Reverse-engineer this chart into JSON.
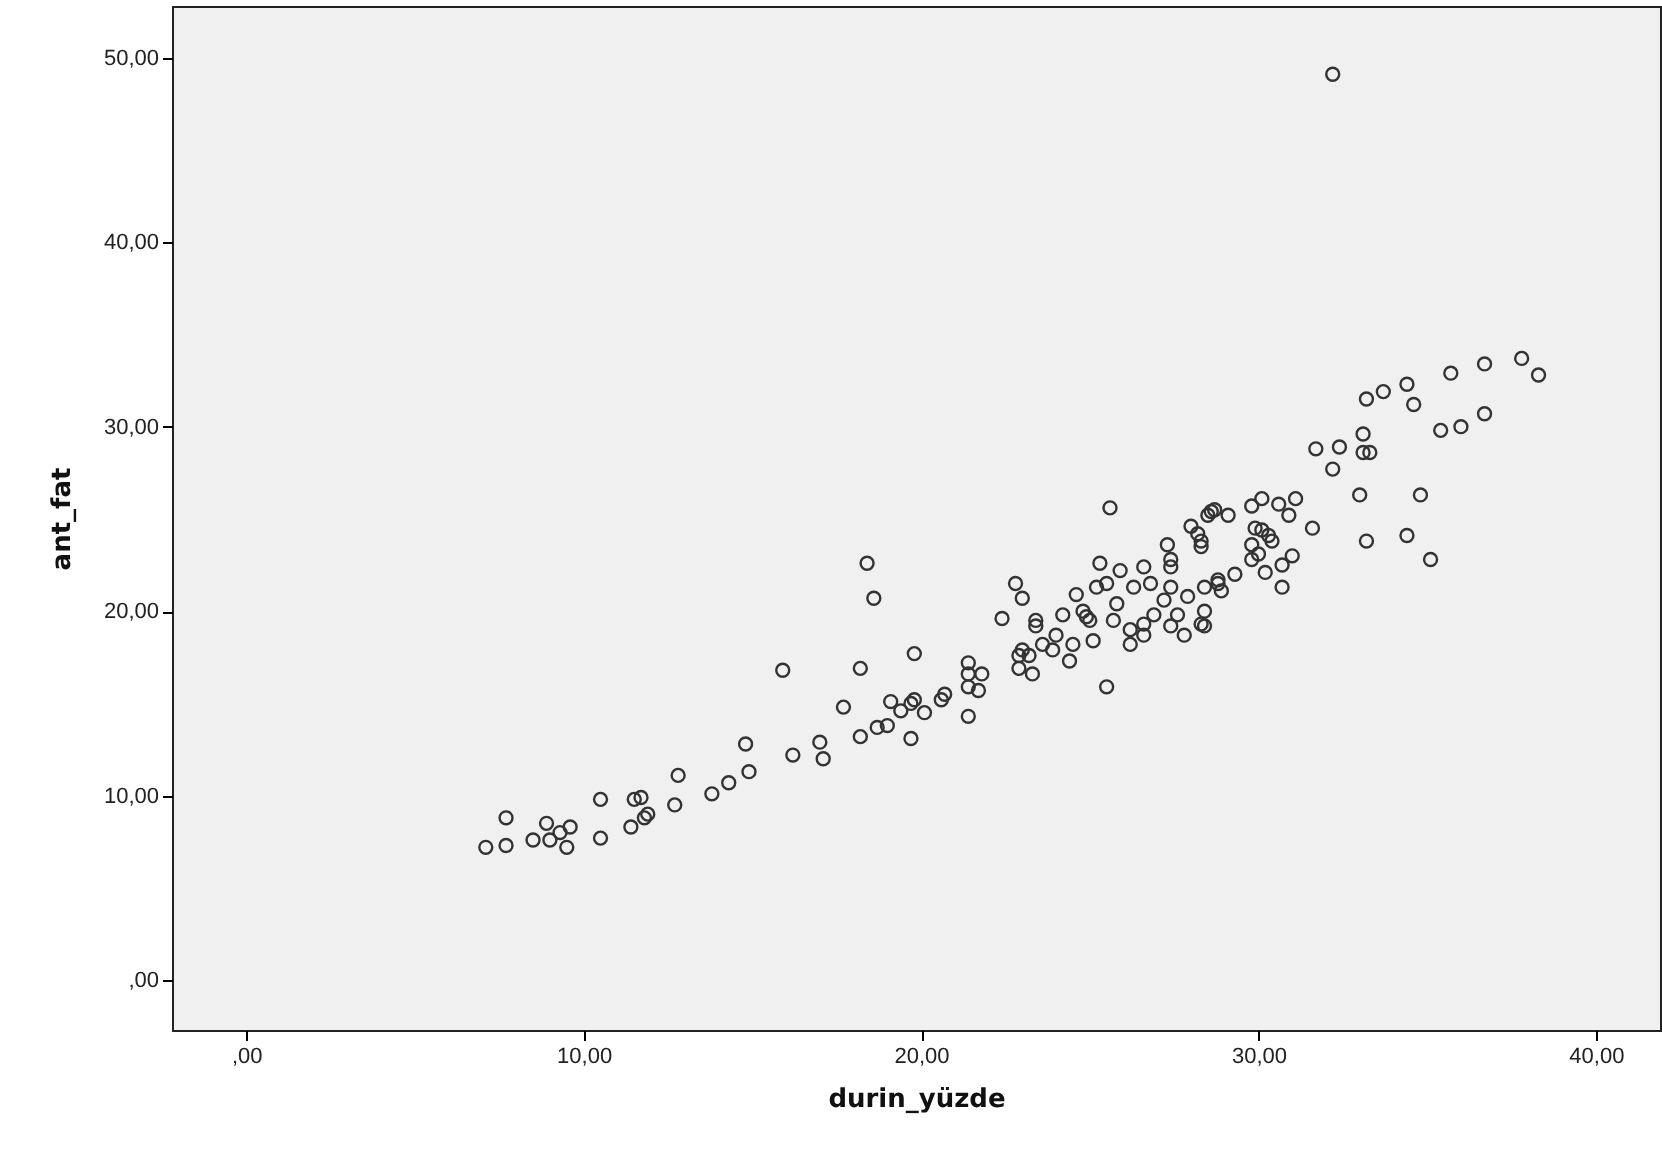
{
  "chart_data": {
    "type": "scatter",
    "xlabel": "durin_yüzde",
    "ylabel": "ant_fat",
    "marker": "circle",
    "color": "#333333",
    "xlim": [
      -2.2,
      41.9
    ],
    "ylim": [
      -2.7,
      52.8
    ],
    "xticks": [
      {
        "value": 0,
        "label": ",00"
      },
      {
        "value": 10,
        "label": "10,00"
      },
      {
        "value": 20,
        "label": "20,00"
      },
      {
        "value": 30,
        "label": "30,00"
      },
      {
        "value": 40,
        "label": "40,00"
      }
    ],
    "yticks": [
      {
        "value": 0,
        "label": ",00"
      },
      {
        "value": 10,
        "label": "10,00"
      },
      {
        "value": 20,
        "label": "20,00"
      },
      {
        "value": 30,
        "label": "30,00"
      },
      {
        "value": 40,
        "label": "40,00"
      },
      {
        "value": 50,
        "label": "50,00"
      }
    ],
    "x": [
      7.1,
      7.7,
      7.7,
      8.5,
      8.9,
      9.0,
      9.3,
      9.6,
      9.5,
      10.5,
      10.5,
      11.5,
      11.7,
      11.9,
      11.8,
      11.4,
      12.7,
      12.8,
      13.8,
      14.3,
      14.9,
      14.8,
      16.2,
      17.0,
      17.1,
      15.9,
      18.2,
      17.7,
      18.2,
      18.7,
      19.0,
      19.1,
      19.4,
      19.7,
      19.7,
      18.4,
      18.6,
      19.8,
      25.6,
      22.8,
      23.0,
      22.4,
      23.4,
      21.4,
      21.8,
      21.4,
      21.7,
      21.4,
      20.7,
      20.6,
      19.8,
      20.1,
      21.4,
      23.0,
      23.2,
      22.9,
      23.3,
      22.9,
      23.6,
      23.4,
      24.0,
      23.9,
      24.4,
      24.5,
      24.2,
      24.6,
      25.0,
      24.9,
      25.1,
      24.8,
      25.2,
      25.3,
      25.5,
      25.7,
      25.8,
      25.9,
      25.5,
      26.2,
      26.6,
      26.3,
      26.6,
      26.8,
      26.9,
      27.2,
      27.4,
      27.4,
      27.8,
      28.3,
      28.4,
      27.6,
      27.9,
      27.3,
      27.4,
      27.4,
      28.0,
      28.2,
      28.3,
      28.5,
      28.7,
      29.1,
      28.8,
      28.9,
      29.3,
      29.8,
      29.8,
      29.8,
      26.2,
      26.6,
      33.2,
      33.7,
      34.4,
      34.6,
      35.7,
      36.7,
      37.8,
      38.3,
      35.4,
      36.0,
      36.7,
      31.7,
      32.4,
      33.1,
      33.1,
      33.3,
      32.2,
      33.0,
      34.8,
      33.2,
      34.4,
      35.1,
      30.1,
      30.6,
      31.1,
      30.9,
      31.6,
      29.9,
      30.3,
      30.4,
      30.1,
      30.0,
      31.0,
      30.7,
      30.2,
      28.8,
      30.7,
      28.6,
      28.4,
      28.4,
      28.3,
      32.2
    ],
    "values": [
      7.2,
      7.3,
      8.8,
      7.6,
      8.5,
      7.6,
      8.0,
      8.3,
      7.2,
      9.8,
      7.7,
      9.8,
      9.9,
      9.0,
      8.8,
      8.3,
      9.5,
      11.1,
      10.1,
      10.7,
      11.3,
      12.8,
      12.2,
      12.9,
      12.0,
      16.8,
      16.9,
      14.8,
      13.2,
      13.7,
      13.8,
      15.1,
      14.6,
      13.1,
      15.0,
      22.6,
      20.7,
      17.7,
      25.6,
      21.5,
      20.7,
      19.6,
      19.5,
      17.2,
      16.6,
      16.6,
      15.7,
      15.9,
      15.5,
      15.2,
      15.2,
      14.5,
      14.3,
      17.9,
      17.6,
      17.6,
      16.6,
      16.9,
      18.2,
      19.2,
      18.7,
      17.9,
      17.3,
      18.2,
      19.8,
      20.9,
      19.5,
      19.7,
      18.4,
      20.0,
      21.3,
      22.6,
      21.5,
      19.5,
      20.4,
      22.2,
      15.9,
      18.2,
      18.7,
      21.3,
      22.4,
      21.5,
      19.8,
      20.6,
      21.3,
      19.2,
      18.7,
      19.3,
      20.0,
      19.8,
      20.8,
      23.6,
      22.8,
      22.4,
      24.6,
      24.2,
      23.5,
      25.2,
      25.5,
      25.2,
      21.5,
      21.1,
      22.0,
      25.7,
      23.6,
      22.8,
      19.0,
      19.3,
      31.5,
      31.9,
      32.3,
      31.2,
      32.9,
      33.4,
      33.7,
      32.8,
      29.8,
      30.0,
      30.7,
      28.8,
      28.9,
      29.6,
      28.6,
      28.6,
      27.7,
      26.3,
      26.3,
      23.8,
      24.1,
      22.8,
      26.1,
      25.8,
      26.1,
      25.2,
      24.5,
      24.5,
      24.1,
      23.8,
      24.4,
      23.1,
      23.0,
      22.5,
      22.1,
      21.7,
      21.3,
      25.4,
      21.3,
      19.2,
      23.8,
      49.1
    ]
  }
}
